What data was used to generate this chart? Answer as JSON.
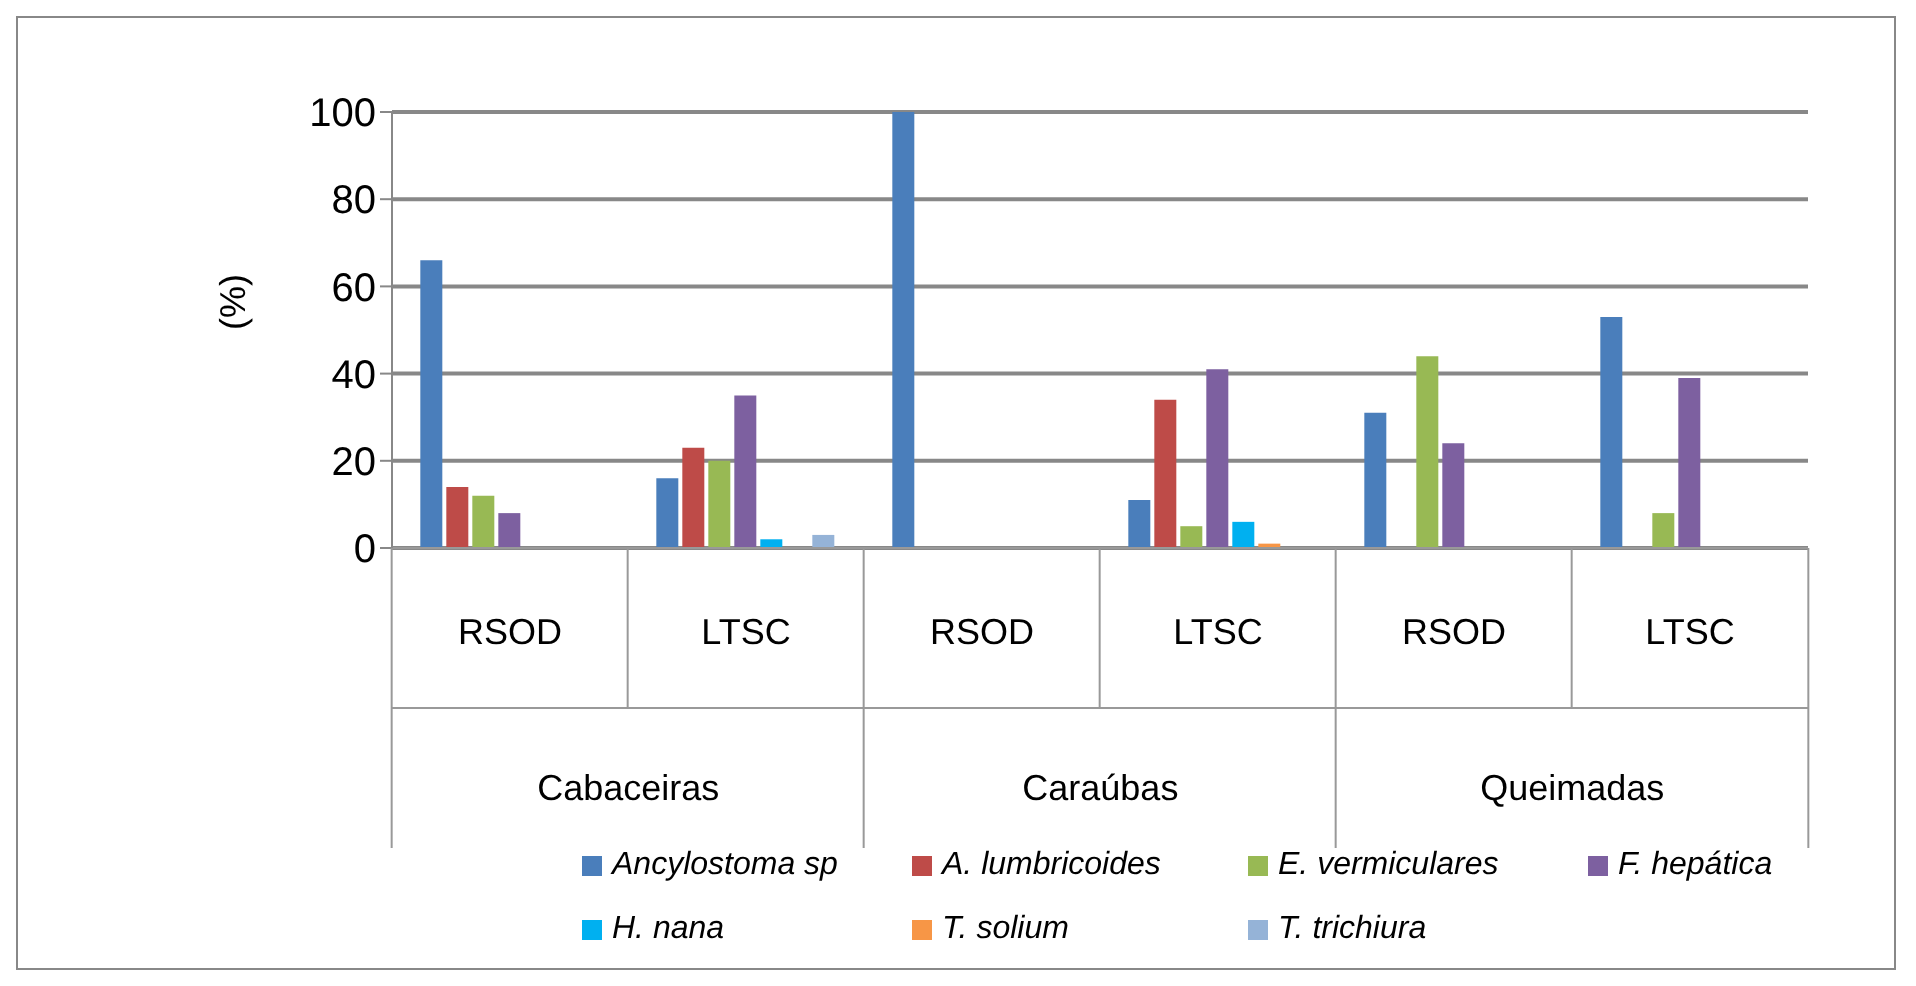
{
  "chart_data": {
    "type": "bar",
    "ylabel": "(%)",
    "categories": [
      "RSOD",
      "LTSC",
      "RSOD",
      "LTSC",
      "RSOD",
      "LTSC"
    ],
    "annotations": [
      "Cabaceiras",
      "Caraúbas",
      "Queimadas"
    ],
    "series": [
      {
        "name": "Ancylostoma sp",
        "color": "#4a7ebb",
        "values": [
          66,
          16,
          100,
          11,
          31,
          53
        ]
      },
      {
        "name": "A. lumbricoides",
        "color": "#be4b48",
        "values": [
          14,
          23,
          0,
          34,
          0,
          0
        ]
      },
      {
        "name": "E. vermiculares",
        "color": "#98b954",
        "values": [
          12,
          20,
          0,
          5,
          44,
          8
        ]
      },
      {
        "name": "F. hepática",
        "color": "#7d60a0",
        "values": [
          8,
          35,
          0,
          41,
          24,
          39
        ]
      },
      {
        "name": "H. nana",
        "color": "#00b0f0",
        "values": [
          0,
          2,
          0,
          6,
          0,
          0
        ]
      },
      {
        "name": "T. solium",
        "color": "#f79646",
        "values": [
          0,
          0,
          0,
          1,
          0,
          0
        ]
      },
      {
        "name": "T. trichiura",
        "color": "#95b3d7",
        "values": [
          0,
          3,
          0,
          0,
          0,
          0
        ]
      }
    ],
    "ylim": [
      0,
      100
    ],
    "yticks": [
      0,
      20,
      40,
      60,
      80,
      100
    ],
    "grid": "y",
    "legend": "bottom"
  }
}
